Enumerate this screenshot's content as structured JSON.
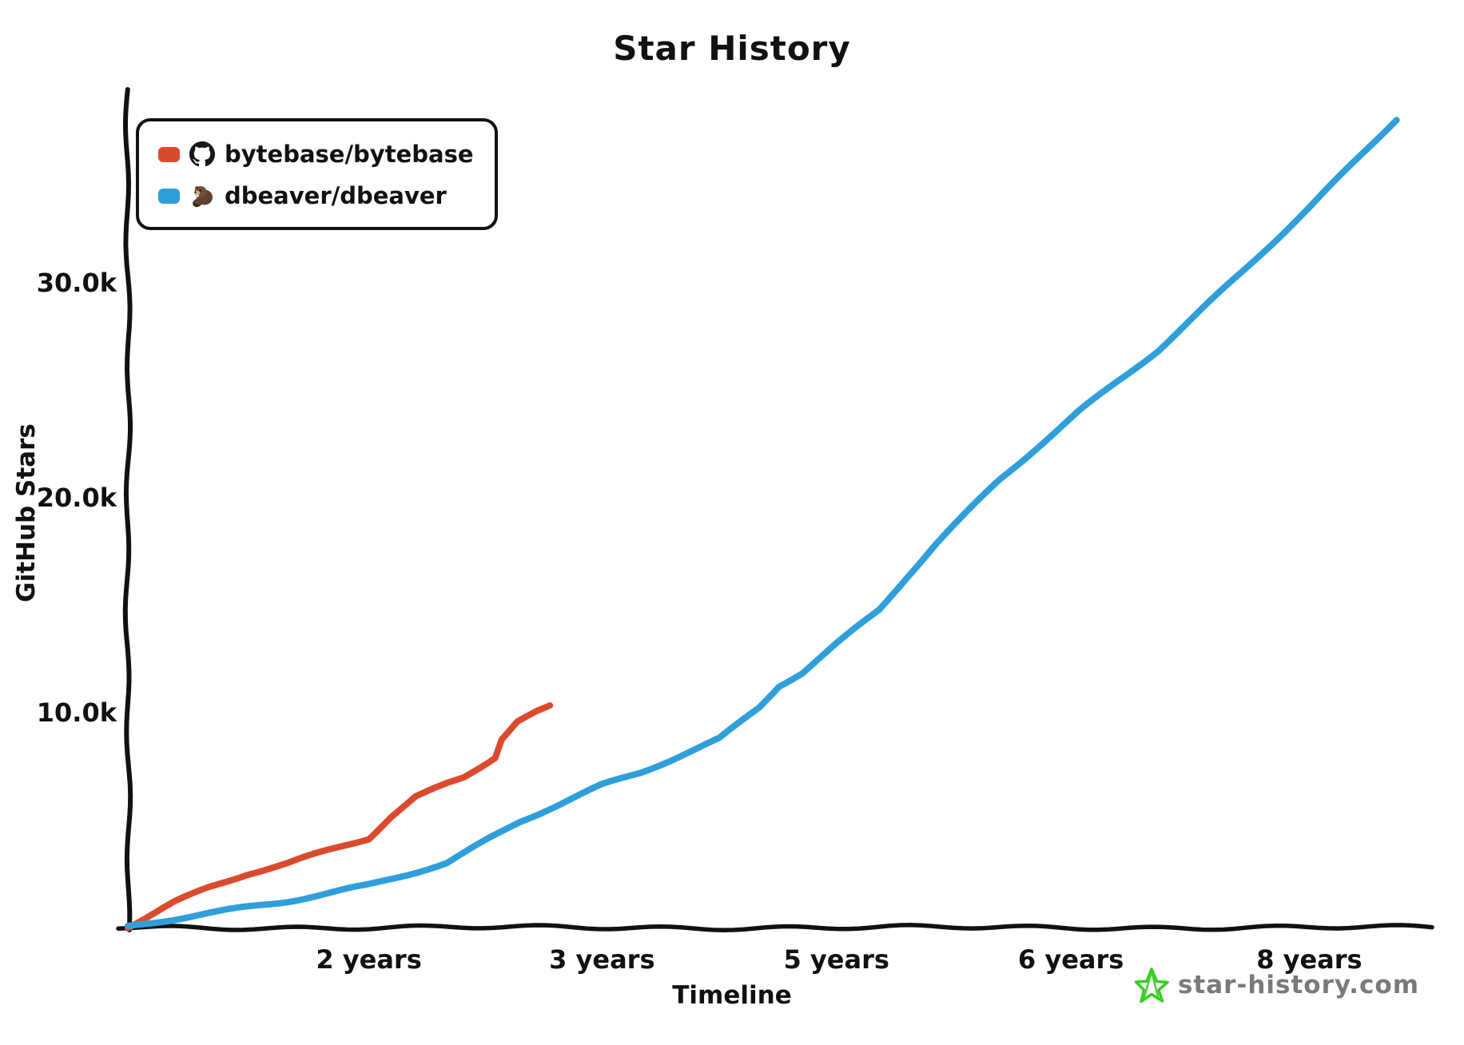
{
  "title": "Star History",
  "legend": {
    "items": [
      {
        "label": "bytebase/bytebase",
        "swatch_color": "#DC4A2E",
        "icon": "github-octocat-icon"
      },
      {
        "label": "dbeaver/dbeaver",
        "swatch_color": "#2F9FDC",
        "icon": "beaver-icon"
      }
    ]
  },
  "watermark": {
    "text": "star-history.com",
    "color": "#7a7a7a",
    "star_color": "#3CCB26"
  },
  "chart_data": {
    "type": "line",
    "title": "Star History",
    "xlabel": "Timeline",
    "ylabel": "GitHub Stars",
    "x_axis_type": "time since repo creation; labeled date ticks are evenly spaced (non-linear in years)",
    "x_ticks": [
      {
        "label": "2 years",
        "pos": 0.185
      },
      {
        "label": "3 years",
        "pos": 0.364
      },
      {
        "label": "5 years",
        "pos": 0.544
      },
      {
        "label": "6 years",
        "pos": 0.724
      },
      {
        "label": "8 years",
        "pos": 0.907
      }
    ],
    "y_ticks": [
      {
        "label": "10.0k",
        "value": 10000
      },
      {
        "label": "20.0k",
        "value": 20000
      },
      {
        "label": "30.0k",
        "value": 30000
      }
    ],
    "ylim": [
      0,
      38500
    ],
    "grid": false,
    "legend_position": "top-left",
    "series": [
      {
        "name": "bytebase/bytebase",
        "color": "#DC4A2E",
        "points_format": "[x_axis_fraction, github_stars]",
        "points": [
          [
            0.0,
            0
          ],
          [
            0.036,
            1150
          ],
          [
            0.061,
            1800
          ],
          [
            0.092,
            2500
          ],
          [
            0.123,
            3000
          ],
          [
            0.153,
            3600
          ],
          [
            0.185,
            4200
          ],
          [
            0.202,
            5200
          ],
          [
            0.221,
            6100
          ],
          [
            0.245,
            6700
          ],
          [
            0.258,
            7000
          ],
          [
            0.276,
            7700
          ],
          [
            0.282,
            7950
          ],
          [
            0.287,
            8800
          ],
          [
            0.299,
            9600
          ],
          [
            0.313,
            10000
          ],
          [
            0.324,
            10250
          ]
        ]
      },
      {
        "name": "dbeaver/dbeaver",
        "color": "#2F9FDC",
        "points_format": "[x_axis_fraction, github_stars]",
        "points": [
          [
            0.0,
            0
          ],
          [
            0.055,
            600
          ],
          [
            0.117,
            1200
          ],
          [
            0.185,
            2000
          ],
          [
            0.245,
            3000
          ],
          [
            0.301,
            4900
          ],
          [
            0.364,
            6600
          ],
          [
            0.393,
            7200
          ],
          [
            0.454,
            8800
          ],
          [
            0.485,
            10300
          ],
          [
            0.5,
            11300
          ],
          [
            0.518,
            11900
          ],
          [
            0.544,
            13200
          ],
          [
            0.577,
            14800
          ],
          [
            0.598,
            16300
          ],
          [
            0.62,
            17800
          ],
          [
            0.669,
            20800
          ],
          [
            0.73,
            24000
          ],
          [
            0.791,
            26900
          ],
          [
            0.853,
            30400
          ],
          [
            0.907,
            33500
          ],
          [
            0.945,
            35800
          ],
          [
            0.974,
            37600
          ]
        ]
      }
    ]
  }
}
